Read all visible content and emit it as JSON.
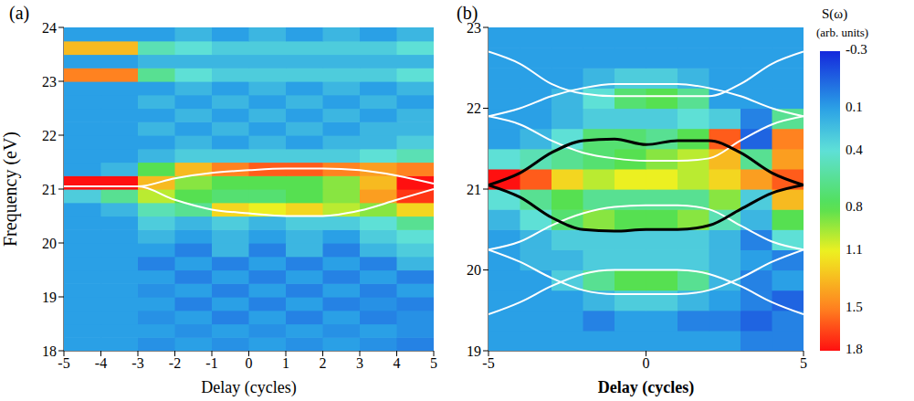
{
  "chart_data": [
    {
      "type": "heatmap",
      "title": "(a)",
      "x_label": "Delay (cycles)",
      "y_label": "Frequency (eV)",
      "xlim": [
        -5,
        5
      ],
      "ylim": [
        18,
        24
      ],
      "xticks": [
        -5,
        -4,
        -3,
        -2,
        -1,
        0,
        1,
        2,
        3,
        4,
        5
      ],
      "yticks": [
        18,
        19,
        20,
        21,
        22,
        23,
        24
      ],
      "cells": {
        "x": [
          -4.5,
          -3.5,
          -2.5,
          -1.5,
          -0.5,
          0.5,
          1.5,
          2.5,
          3.5,
          4.5
        ],
        "y": [
          18.125,
          18.375,
          18.625,
          18.875,
          19.125,
          19.375,
          19.625,
          19.875,
          20.125,
          20.375,
          20.625,
          20.875,
          21.125,
          21.375,
          21.625,
          21.875,
          22.125,
          22.375,
          22.625,
          22.875,
          23.125,
          23.375,
          23.625,
          23.875
        ],
        "values": [
          [
            0.1,
            0.1,
            0.05,
            0.1,
            0.05,
            0.1,
            0.05,
            0.1,
            0.05,
            0.0
          ],
          [
            0.1,
            0.1,
            0.1,
            0.05,
            0.1,
            0.05,
            0.1,
            0.05,
            0.1,
            0.05
          ],
          [
            0.1,
            0.1,
            0.05,
            0.1,
            0.0,
            0.1,
            0.0,
            0.1,
            0.0,
            0.05
          ],
          [
            0.1,
            0.1,
            0.1,
            0.0,
            0.1,
            0.0,
            0.1,
            0.0,
            0.05,
            0.0
          ],
          [
            0.1,
            0.1,
            0.05,
            0.1,
            0.0,
            0.1,
            0.0,
            0.1,
            0.0,
            0.1
          ],
          [
            0.1,
            0.1,
            0.1,
            0.0,
            0.1,
            0.0,
            0.1,
            0.0,
            0.1,
            0.0
          ],
          [
            0.1,
            0.1,
            0.0,
            0.1,
            0.0,
            0.1,
            0.0,
            0.1,
            0.0,
            0.2
          ],
          [
            0.1,
            0.1,
            0.1,
            0.0,
            0.2,
            0.0,
            0.2,
            0.0,
            0.2,
            0.3
          ],
          [
            0.1,
            0.1,
            0.2,
            0.1,
            0.2,
            0.1,
            0.2,
            0.1,
            0.3,
            0.4
          ],
          [
            0.1,
            0.1,
            0.3,
            0.2,
            0.3,
            0.2,
            0.3,
            0.3,
            0.4,
            0.6
          ],
          [
            0.1,
            0.2,
            0.5,
            0.6,
            1.2,
            1.1,
            1.2,
            1.0,
            0.9,
            1.2
          ],
          [
            0.3,
            0.6,
            1.0,
            0.8,
            0.7,
            0.7,
            0.8,
            0.9,
            1.4,
            1.7
          ],
          [
            1.8,
            1.8,
            1.3,
            0.9,
            0.8,
            0.8,
            0.8,
            0.9,
            1.3,
            1.8
          ],
          [
            0.1,
            0.2,
            0.8,
            1.3,
            1.5,
            1.6,
            1.6,
            1.5,
            1.4,
            1.5
          ],
          [
            0.1,
            0.1,
            0.2,
            0.3,
            0.3,
            0.3,
            0.3,
            0.3,
            0.4,
            0.5
          ],
          [
            0.1,
            0.1,
            0.1,
            0.2,
            0.1,
            0.2,
            0.1,
            0.2,
            0.2,
            0.3
          ],
          [
            0.1,
            0.1,
            0.2,
            0.1,
            0.2,
            0.1,
            0.2,
            0.1,
            0.2,
            0.2
          ],
          [
            0.1,
            0.1,
            0.1,
            0.2,
            0.1,
            0.2,
            0.1,
            0.2,
            0.1,
            0.2
          ],
          [
            0.1,
            0.1,
            0.2,
            0.1,
            0.2,
            0.1,
            0.2,
            0.1,
            0.2,
            0.1
          ],
          [
            0.1,
            0.1,
            0.1,
            0.2,
            0.1,
            0.2,
            0.1,
            0.2,
            0.1,
            0.2
          ],
          [
            1.5,
            1.5,
            0.6,
            0.4,
            0.3,
            0.3,
            0.3,
            0.3,
            0.3,
            0.4
          ],
          [
            0.1,
            0.1,
            0.2,
            0.2,
            0.2,
            0.2,
            0.2,
            0.2,
            0.2,
            0.2
          ],
          [
            1.3,
            1.3,
            0.5,
            0.4,
            0.3,
            0.3,
            0.3,
            0.3,
            0.3,
            0.4
          ],
          [
            0.1,
            0.1,
            0.1,
            0.2,
            0.1,
            0.2,
            0.1,
            0.2,
            0.1,
            0.2
          ]
        ]
      },
      "series": [
        {
          "color": "#ffffff",
          "x": [
            -5,
            -4,
            -3,
            -2,
            -1,
            0,
            1,
            2,
            3,
            4,
            5
          ],
          "values": [
            21.05,
            21.05,
            21.05,
            21.2,
            21.3,
            21.35,
            21.38,
            21.38,
            21.35,
            21.25,
            21.1
          ]
        },
        {
          "color": "#ffffff",
          "x": [
            -5,
            -4,
            -3,
            -2,
            -1,
            0,
            1,
            2,
            3,
            4,
            5
          ],
          "values": [
            21.05,
            21.05,
            21.05,
            20.8,
            20.62,
            20.55,
            20.5,
            20.5,
            20.6,
            20.8,
            21.0
          ]
        }
      ]
    },
    {
      "type": "heatmap",
      "title": "(b)",
      "x_label": "Delay (cycles)",
      "xlim": [
        -5,
        5
      ],
      "ylim": [
        19,
        23
      ],
      "xticks": [
        -5,
        0,
        5
      ],
      "yticks": [
        19,
        20,
        21,
        22,
        23
      ],
      "cells": {
        "x": [
          -4.5,
          -3.5,
          -2.5,
          -1.5,
          -0.5,
          0.5,
          1.5,
          2.5,
          3.5,
          4.5
        ],
        "y": [
          19.125,
          19.375,
          19.625,
          19.875,
          20.125,
          20.375,
          20.625,
          20.875,
          21.125,
          21.375,
          21.625,
          21.875,
          22.125,
          22.375,
          22.625,
          22.875
        ],
        "values": [
          [
            0.1,
            0.1,
            0.1,
            0.1,
            0.1,
            0.1,
            0.1,
            0.1,
            0.0,
            0.0
          ],
          [
            0.1,
            0.1,
            0.1,
            0.0,
            0.1,
            0.1,
            0.0,
            0.0,
            -0.1,
            0.0
          ],
          [
            0.1,
            0.1,
            0.1,
            0.2,
            0.3,
            0.3,
            0.2,
            0.1,
            0.0,
            -0.1
          ],
          [
            0.1,
            0.1,
            0.3,
            0.6,
            0.8,
            0.8,
            0.6,
            0.2,
            0.0,
            0.1
          ],
          [
            0.1,
            0.2,
            0.2,
            0.3,
            0.3,
            0.3,
            0.3,
            0.2,
            0.1,
            0.0
          ],
          [
            0.1,
            0.2,
            0.3,
            0.3,
            0.3,
            0.3,
            0.3,
            0.2,
            0.0,
            0.4
          ],
          [
            0.2,
            0.4,
            0.7,
            0.9,
            0.8,
            0.8,
            0.9,
            0.5,
            0.2,
            0.8
          ],
          [
            0.4,
            0.6,
            0.8,
            0.6,
            0.6,
            0.6,
            0.6,
            0.9,
            0.3,
            1.3
          ],
          [
            1.8,
            1.6,
            1.2,
            1.0,
            1.1,
            1.1,
            1.0,
            1.2,
            1.4,
            1.6
          ],
          [
            0.4,
            0.5,
            0.6,
            0.7,
            0.8,
            0.9,
            1.0,
            1.3,
            0.6,
            1.4
          ],
          [
            0.1,
            0.2,
            0.4,
            0.7,
            0.7,
            0.6,
            0.8,
            1.6,
            -0.1,
            1.5
          ],
          [
            0.1,
            0.1,
            0.2,
            0.3,
            0.3,
            0.3,
            0.4,
            0.3,
            0.0,
            0.6
          ],
          [
            0.1,
            0.1,
            0.2,
            0.4,
            0.7,
            0.8,
            0.6,
            0.1,
            0.1,
            0.1
          ],
          [
            0.1,
            0.1,
            0.1,
            0.2,
            0.3,
            0.3,
            0.2,
            0.1,
            0.1,
            0.1
          ],
          [
            0.1,
            0.1,
            0.1,
            0.1,
            0.1,
            0.1,
            0.1,
            0.1,
            0.1,
            0.1
          ],
          [
            0.1,
            0.1,
            0.1,
            0.1,
            0.1,
            0.1,
            0.1,
            0.1,
            0.1,
            0.1
          ]
        ]
      },
      "series": [
        {
          "color": "#ffffff",
          "x": [
            -5,
            -4,
            -3,
            -2,
            -1,
            0,
            1,
            2,
            3,
            4,
            5
          ],
          "values": [
            22.7,
            22.55,
            22.3,
            22.18,
            22.15,
            22.15,
            22.15,
            22.15,
            22.3,
            22.55,
            22.7
          ]
        },
        {
          "color": "#ffffff",
          "x": [
            -5,
            -4,
            -3,
            -2,
            -1,
            0,
            1,
            2,
            3,
            4,
            5
          ],
          "values": [
            21.9,
            22.0,
            22.15,
            22.25,
            22.3,
            22.3,
            22.3,
            22.25,
            22.15,
            22.0,
            21.9
          ]
        },
        {
          "color": "#ffffff",
          "x": [
            -5,
            -4,
            -3,
            -2,
            -1,
            0,
            1,
            2,
            3,
            4,
            5
          ],
          "values": [
            21.9,
            21.8,
            21.6,
            21.45,
            21.38,
            21.35,
            21.35,
            21.38,
            21.6,
            21.8,
            21.9
          ]
        },
        {
          "color": "#ffffff",
          "x": [
            -5,
            -4,
            -3,
            -2,
            -1,
            0,
            1,
            2,
            3,
            4,
            5
          ],
          "values": [
            20.25,
            20.35,
            20.55,
            20.7,
            20.78,
            20.8,
            20.8,
            20.75,
            20.55,
            20.35,
            20.25
          ]
        },
        {
          "color": "#ffffff",
          "x": [
            -5,
            -4,
            -3,
            -2,
            -1,
            0,
            1,
            2,
            3,
            4,
            5
          ],
          "values": [
            20.25,
            20.1,
            19.9,
            19.75,
            19.7,
            19.7,
            19.7,
            19.75,
            19.9,
            20.1,
            20.25
          ]
        },
        {
          "color": "#ffffff",
          "x": [
            -5,
            -4,
            -3,
            -2,
            -1,
            0,
            1,
            2,
            3,
            4,
            5
          ],
          "values": [
            19.45,
            19.6,
            19.8,
            19.95,
            20.0,
            20.0,
            20.0,
            19.95,
            19.8,
            19.6,
            19.45
          ]
        },
        {
          "color": "#000000",
          "x": [
            -5,
            -4,
            -3,
            -2,
            -1,
            0,
            1,
            2,
            3,
            4,
            5
          ],
          "values": [
            21.05,
            21.2,
            21.45,
            21.6,
            21.62,
            21.55,
            21.6,
            21.6,
            21.45,
            21.2,
            21.05
          ]
        },
        {
          "color": "#000000",
          "x": [
            -5,
            -4,
            -3,
            -2,
            -1,
            0,
            1,
            2,
            3,
            4,
            5
          ],
          "values": [
            21.05,
            20.9,
            20.65,
            20.5,
            20.48,
            20.5,
            20.5,
            20.55,
            20.75,
            20.95,
            21.05
          ]
        }
      ],
      "colorbar": {
        "label": [
          "S(ω)",
          "(arb. units)"
        ],
        "range": [
          -0.3,
          1.8
        ],
        "ticks": [
          -0.3,
          0.1,
          0.4,
          0.8,
          1.1,
          1.5,
          1.8
        ]
      }
    }
  ]
}
